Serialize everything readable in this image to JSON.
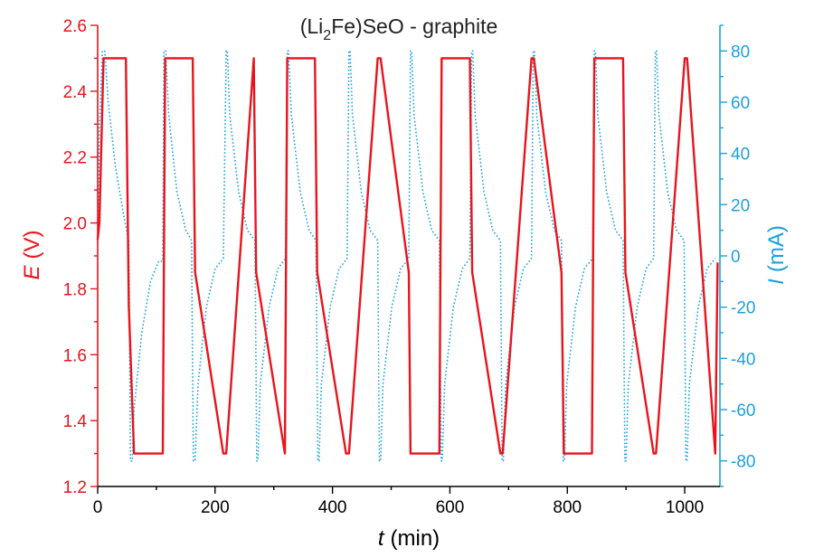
{
  "chart_data": {
    "type": "line",
    "title": {
      "prefix": "(Li",
      "subscript": "2",
      "suffix": "Fe)SeO - graphite"
    },
    "xlabel": {
      "symbol": "t",
      "unit": "(min)"
    },
    "ylabel_left": {
      "symbol": "E",
      "unit": "(V)"
    },
    "ylabel_right": {
      "symbol": "I",
      "unit": "(mA)"
    },
    "xlim": [
      0,
      1060
    ],
    "ylim_left": [
      1.2,
      2.6
    ],
    "ylim_right": [
      -90,
      90
    ],
    "x_ticks": [
      "0",
      "200",
      "400",
      "600",
      "800",
      "1000"
    ],
    "x_tick_values": [
      0,
      200,
      400,
      600,
      800,
      1000
    ],
    "y_left_ticks": [
      "1.2",
      "1.4",
      "1.6",
      "1.8",
      "2.0",
      "2.2",
      "2.4",
      "2.6"
    ],
    "y_left_tick_values": [
      1.2,
      1.4,
      1.6,
      1.8,
      2.0,
      2.2,
      2.4,
      2.6
    ],
    "y_right_ticks": [
      "-80",
      "-60",
      "-40",
      "-20",
      "0",
      "20",
      "40",
      "60",
      "80"
    ],
    "y_right_tick_values": [
      -80,
      -60,
      -40,
      -20,
      0,
      20,
      40,
      60,
      80
    ],
    "colors": {
      "voltage": "#e8141c",
      "current": "#1ba1dc",
      "axis_left": "#e8141c",
      "axis_right": "#1ba1dc",
      "axis_bottom": "#000000"
    },
    "series": [
      {
        "axis": "left",
        "style": "solid",
        "x": [
          0,
          3,
          10,
          48,
          53,
          62,
          111,
          115,
          162,
          166,
          214,
          219,
          266,
          270,
          319,
          323,
          370,
          374,
          423,
          428,
          477,
          482,
          530,
          533,
          582,
          586,
          634,
          638,
          686,
          690,
          739,
          743,
          790,
          794,
          842,
          846,
          895,
          899,
          947,
          951,
          1000,
          1004,
          1052,
          1056
        ],
        "values": [
          1.95,
          2.0,
          2.5,
          2.5,
          1.75,
          1.3,
          1.3,
          2.5,
          2.5,
          1.85,
          1.3,
          1.3,
          2.5,
          1.85,
          1.3,
          2.5,
          2.5,
          1.85,
          1.3,
          1.3,
          2.5,
          2.5,
          1.85,
          1.3,
          1.3,
          2.5,
          2.5,
          1.85,
          1.3,
          1.3,
          2.5,
          2.5,
          1.85,
          1.3,
          1.3,
          2.5,
          2.5,
          1.85,
          1.3,
          1.3,
          2.5,
          2.5,
          1.3,
          1.88
        ]
      },
      {
        "axis": "right",
        "style": "dotted",
        "x": [
          0,
          3,
          8,
          12,
          18,
          30,
          45,
          53,
          56,
          59,
          62,
          75,
          90,
          104,
          111,
          113,
          116,
          121,
          135,
          150,
          160,
          163,
          166,
          171,
          185,
          200,
          214,
          219,
          221,
          225,
          240,
          255,
          268,
          271,
          273,
          277,
          292,
          307,
          320,
          323,
          325,
          330,
          345,
          360,
          372,
          375,
          377,
          381,
          396,
          411,
          425,
          428,
          430,
          434,
          449,
          464,
          477,
          480,
          482,
          486,
          501,
          516,
          530,
          533,
          535,
          539,
          554,
          569,
          582,
          585,
          587,
          591,
          606,
          621,
          634,
          637,
          639,
          643,
          658,
          673,
          686,
          689,
          691,
          695,
          710,
          725,
          739,
          742,
          744,
          748,
          763,
          778,
          790,
          793,
          795,
          799,
          814,
          829,
          843,
          846,
          848,
          852,
          867,
          882,
          895,
          898,
          900,
          904,
          919,
          934,
          947,
          950,
          952,
          956,
          971,
          986,
          999,
          1002,
          1004,
          1008,
          1023,
          1038,
          1052
        ],
        "values": [
          6,
          50,
          80,
          80,
          60,
          35,
          15,
          6,
          -80,
          -80,
          -60,
          -30,
          -10,
          -2,
          -2,
          80,
          80,
          55,
          25,
          10,
          6,
          -80,
          -80,
          -50,
          -20,
          -5,
          -1,
          80,
          80,
          55,
          25,
          10,
          6,
          -80,
          -80,
          -50,
          -20,
          -5,
          -1,
          80,
          80,
          55,
          25,
          10,
          6,
          -80,
          -80,
          -50,
          -20,
          -5,
          -1,
          80,
          80,
          55,
          25,
          10,
          6,
          -80,
          -80,
          -50,
          -20,
          -5,
          -1,
          80,
          80,
          55,
          25,
          10,
          6,
          -80,
          -80,
          -50,
          -20,
          -5,
          -1,
          80,
          80,
          55,
          25,
          10,
          6,
          -80,
          -80,
          -50,
          -20,
          -5,
          -1,
          80,
          80,
          55,
          25,
          10,
          6,
          -80,
          -80,
          -50,
          -20,
          -5,
          -1,
          80,
          80,
          55,
          25,
          10,
          6,
          -80,
          -80,
          -50,
          -20,
          -5,
          -1,
          80,
          80,
          55,
          25,
          10,
          6,
          -80,
          -80,
          -50,
          -20,
          -5,
          -1
        ]
      }
    ]
  }
}
